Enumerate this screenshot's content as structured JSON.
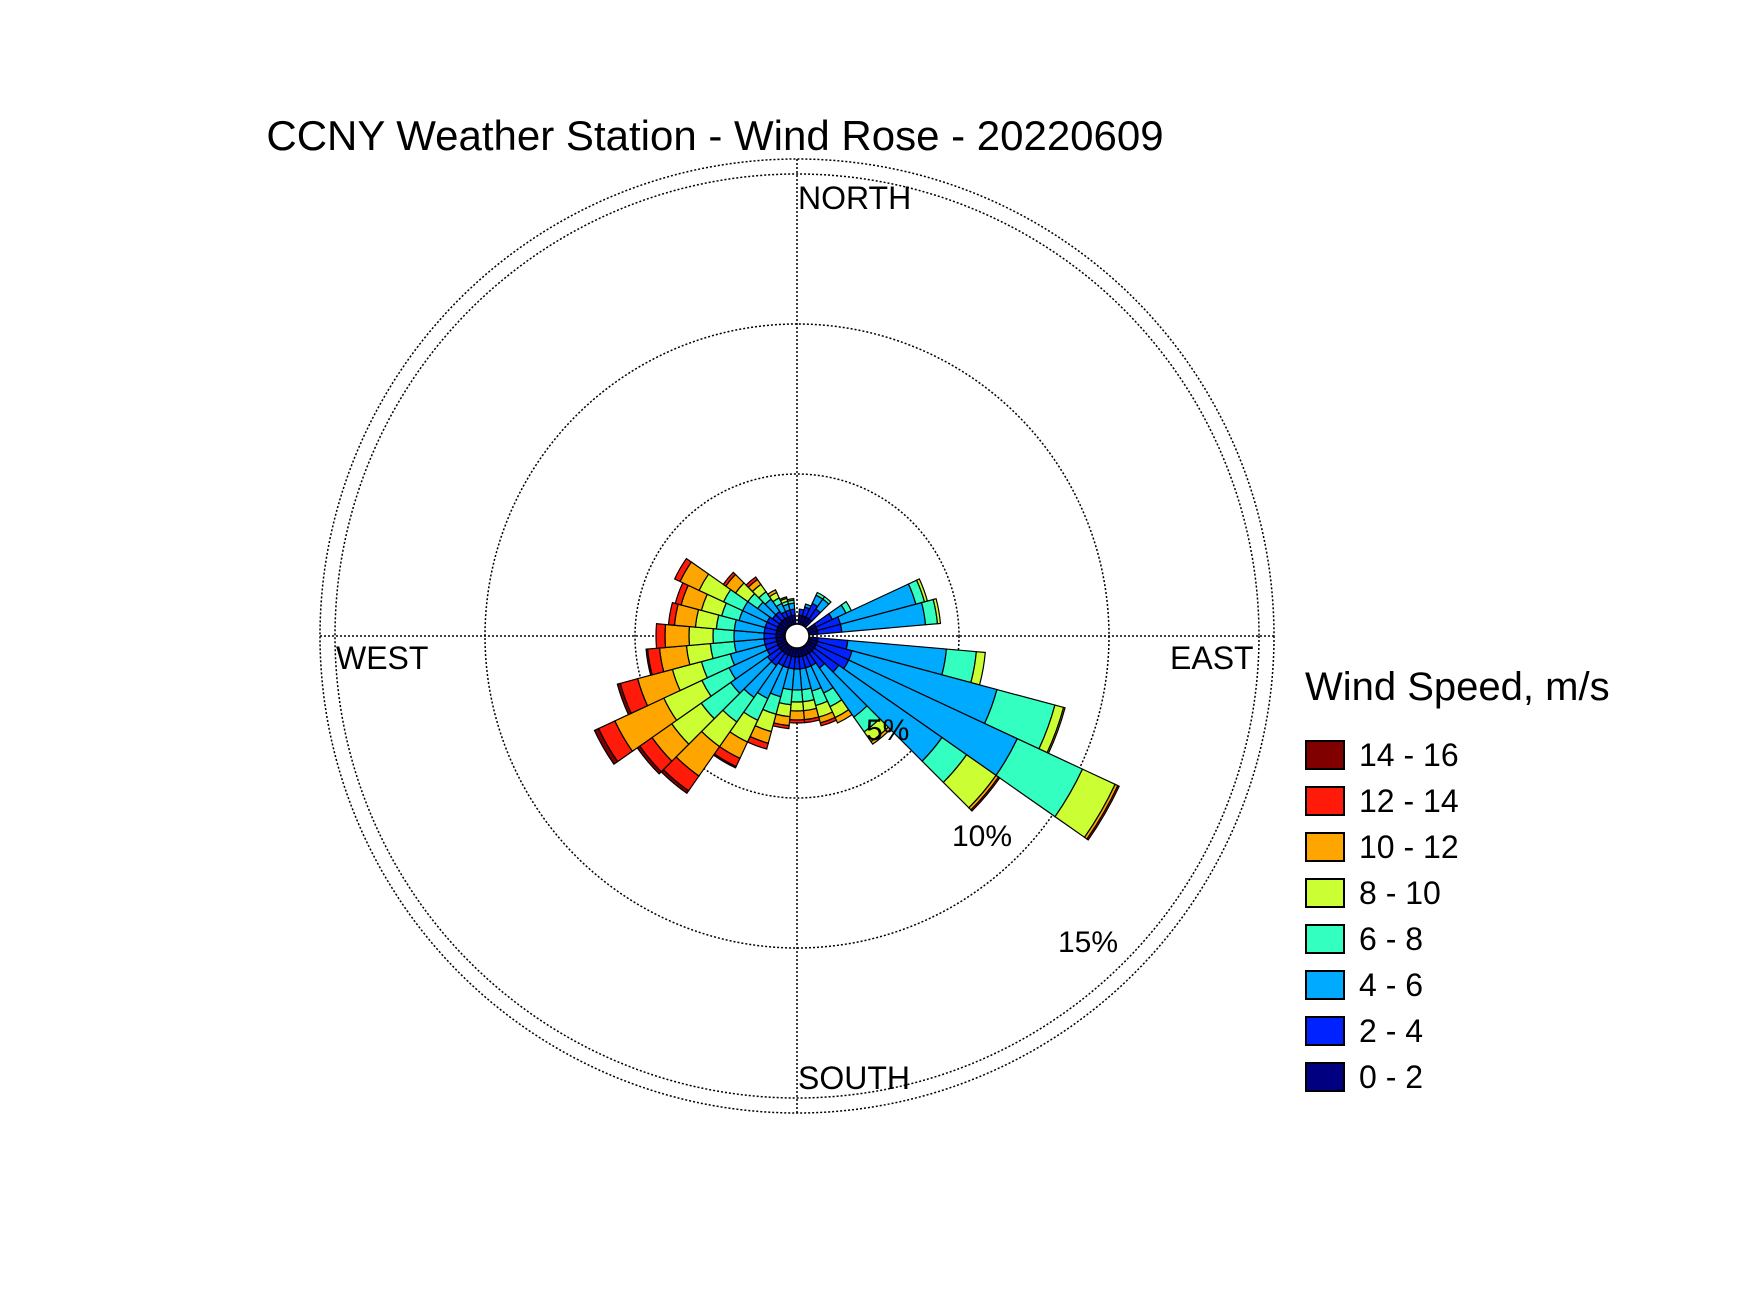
{
  "chart_data": {
    "type": "wind-rose",
    "title": "CCNY Weather Station - Wind Rose - 20220609",
    "direction_labels": {
      "north": "NORTH",
      "east": "EAST",
      "south": "SOUTH",
      "west": "WEST"
    },
    "radial_ticks": [
      {
        "value": 5,
        "label": "5%"
      },
      {
        "value": 10,
        "label": "10%"
      },
      {
        "value": 15,
        "label": "15%"
      }
    ],
    "radial_max": 15.5,
    "grid": true,
    "legend": {
      "title": "Wind Speed, m/s",
      "position": "right",
      "bins": [
        {
          "label": "14 - 16",
          "color": "#800000"
        },
        {
          "label": "12 - 14",
          "color": "#ff1a0a"
        },
        {
          "label": "10 - 12",
          "color": "#ffa500"
        },
        {
          "label": "8 - 10",
          "color": "#ccff33"
        },
        {
          "label": "6 - 8",
          "color": "#33ffc0"
        },
        {
          "label": "4 - 6",
          "color": "#00aaff"
        },
        {
          "label": "2 - 4",
          "color": "#0022ff"
        },
        {
          "label": "0 - 2",
          "color": "#000080"
        }
      ]
    },
    "sector_width_deg": 10,
    "speed_bins_order": [
      "0 - 2",
      "2 - 4",
      "4 - 6",
      "6 - 8",
      "8 - 10",
      "10 - 12",
      "12 - 14",
      "14 - 16"
    ],
    "sectors": [
      {
        "direction": 10,
        "values": [
          0.3,
          0.2,
          0,
          0,
          0,
          0,
          0,
          0
        ]
      },
      {
        "direction": 20,
        "values": [
          0.3,
          0.3,
          0.1,
          0,
          0,
          0,
          0,
          0
        ]
      },
      {
        "direction": 30,
        "values": [
          0.3,
          0.5,
          0.3,
          0.1,
          0,
          0,
          0,
          0
        ]
      },
      {
        "direction": 40,
        "values": [
          0.3,
          0.4,
          0.4,
          0.1,
          0,
          0,
          0,
          0
        ]
      },
      {
        "direction": 60,
        "values": [
          0.3,
          0.6,
          0.5,
          0.2,
          0,
          0,
          0,
          0
        ]
      },
      {
        "direction": 70,
        "values": [
          0.3,
          0.8,
          2.6,
          0.3,
          0.1,
          0,
          0,
          0
        ]
      },
      {
        "direction": 80,
        "values": [
          0.3,
          0.8,
          2.8,
          0.4,
          0.1,
          0,
          0,
          0
        ]
      },
      {
        "direction": 100,
        "values": [
          0.3,
          1.0,
          3.3,
          1.0,
          0.3,
          0,
          0,
          0
        ]
      },
      {
        "direction": 110,
        "values": [
          0.3,
          1.2,
          5.0,
          2.0,
          0.3,
          0.05,
          0,
          0
        ]
      },
      {
        "direction": 120,
        "values": [
          0.3,
          1.2,
          6.2,
          2.4,
          1.2,
          0.1,
          0.05,
          0
        ]
      },
      {
        "direction": 130,
        "values": [
          0.3,
          1.0,
          4.2,
          1.0,
          1.2,
          0.1,
          0.05,
          0
        ]
      },
      {
        "direction": 140,
        "values": [
          0.3,
          0.6,
          2.0,
          0.6,
          0.4,
          0.1,
          0,
          0
        ]
      },
      {
        "direction": 150,
        "values": [
          0.3,
          0.4,
          1.0,
          0.5,
          0.4,
          0.2,
          0,
          0
        ]
      },
      {
        "direction": 160,
        "values": [
          0.3,
          0.4,
          0.8,
          0.5,
          0.4,
          0.2,
          0.1,
          0
        ]
      },
      {
        "direction": 170,
        "values": [
          0.3,
          0.4,
          0.7,
          0.4,
          0.3,
          0.3,
          0.1,
          0
        ]
      },
      {
        "direction": 180,
        "values": [
          0.3,
          0.4,
          0.7,
          0.4,
          0.3,
          0.3,
          0.1,
          0
        ]
      },
      {
        "direction": 190,
        "values": [
          0.3,
          0.4,
          0.7,
          0.5,
          0.4,
          0.3,
          0.1,
          0
        ]
      },
      {
        "direction": 200,
        "values": [
          0.3,
          0.4,
          1.0,
          0.6,
          0.6,
          0.4,
          0.2,
          0
        ]
      },
      {
        "direction": 210,
        "values": [
          0.3,
          0.4,
          1.2,
          0.8,
          0.8,
          0.6,
          0.3,
          0.05
        ]
      },
      {
        "direction": 220,
        "values": [
          0.3,
          0.5,
          1.3,
          1.0,
          1.0,
          1.2,
          0.6,
          0.1
        ]
      },
      {
        "direction": 230,
        "values": [
          0.3,
          0.5,
          1.5,
          1.2,
          1.2,
          0.8,
          0.5,
          0.1
        ]
      },
      {
        "direction": 240,
        "values": [
          0.3,
          0.4,
          1.4,
          1.0,
          1.4,
          1.8,
          0.6,
          0.15
        ]
      },
      {
        "direction": 250,
        "values": [
          0.3,
          0.4,
          1.2,
          1.0,
          1.0,
          1.2,
          0.6,
          0.1
        ]
      },
      {
        "direction": 260,
        "values": [
          0.3,
          0.4,
          1.0,
          0.8,
          0.8,
          0.9,
          0.4,
          0.05
        ]
      },
      {
        "direction": 270,
        "values": [
          0.3,
          0.4,
          1.0,
          0.7,
          0.8,
          0.8,
          0.3,
          0
        ]
      },
      {
        "direction": 280,
        "values": [
          0.3,
          0.4,
          1.0,
          0.6,
          0.7,
          0.7,
          0.2,
          0
        ]
      },
      {
        "direction": 290,
        "values": [
          0.3,
          0.4,
          0.9,
          0.6,
          0.7,
          0.7,
          0.2,
          0
        ]
      },
      {
        "direction": 300,
        "values": [
          0.3,
          0.4,
          0.9,
          0.7,
          0.9,
          0.7,
          0.2,
          0
        ]
      },
      {
        "direction": 310,
        "values": [
          0.3,
          0.3,
          0.6,
          0.4,
          0.5,
          0.4,
          0.1,
          0
        ]
      },
      {
        "direction": 320,
        "values": [
          0.3,
          0.3,
          0.5,
          0.3,
          0.3,
          0.2,
          0.1,
          0
        ]
      },
      {
        "direction": 330,
        "values": [
          0.3,
          0.2,
          0.3,
          0.2,
          0.2,
          0.1,
          0,
          0
        ]
      },
      {
        "direction": 340,
        "values": [
          0.3,
          0.2,
          0.2,
          0.1,
          0.1,
          0.05,
          0,
          0
        ]
      },
      {
        "direction": 350,
        "values": [
          0.3,
          0.2,
          0.2,
          0.1,
          0.05,
          0,
          0,
          0
        ]
      }
    ]
  }
}
